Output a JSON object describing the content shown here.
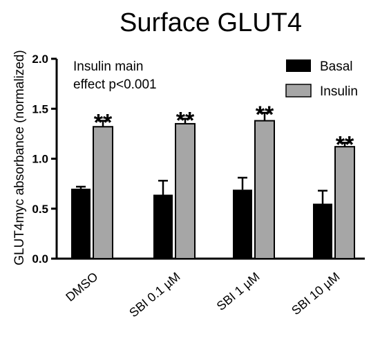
{
  "chart_data": {
    "type": "bar",
    "title": "Surface GLUT4",
    "ylabel": "GLUT4myc absorbance (normalized)",
    "xlabel": "",
    "categories": [
      "DMSO",
      "SBI 0.1 µM",
      "SBI 1 µM",
      "SBI 10 µM"
    ],
    "series": [
      {
        "name": "Basal",
        "color": "#000000",
        "values": [
          0.7,
          0.64,
          0.69,
          0.55
        ],
        "errors": [
          0.02,
          0.14,
          0.12,
          0.13
        ]
      },
      {
        "name": "Insulin",
        "color": "#a6a6a6",
        "values": [
          1.32,
          1.35,
          1.38,
          1.12
        ],
        "errors": [
          0.06,
          0.05,
          0.08,
          0.04
        ]
      }
    ],
    "significance": [
      "**",
      "**",
      "**",
      "**"
    ],
    "ylim": [
      0,
      2.0
    ],
    "yticks": [
      "0.0",
      "0.5",
      "1.0",
      "1.5",
      "2.0"
    ],
    "yticks_values": [
      0,
      0.5,
      1.0,
      1.5,
      2.0
    ],
    "annotation": [
      "Insulin main",
      "effect p<0.001"
    ],
    "legend_position": "top-right",
    "grid": false
  }
}
